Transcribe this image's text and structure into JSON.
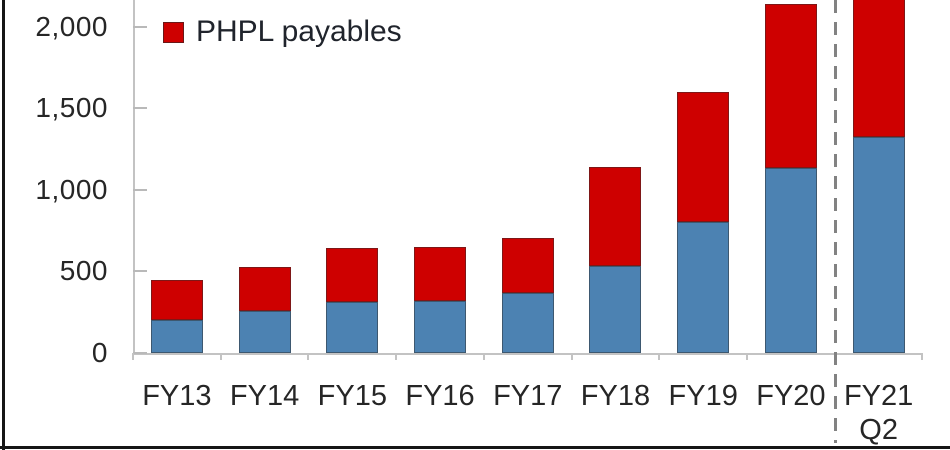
{
  "legend": {
    "items": [
      {
        "label": "PHPL payables",
        "color": "#CE0000",
        "shape": "square"
      }
    ],
    "note_visible_entries": 1
  },
  "y_axis": {
    "tick_labels": [
      "0",
      "500",
      "1,000",
      "1,500",
      "2,000"
    ],
    "tick_values": [
      0,
      500,
      1000,
      1500,
      2000
    ]
  },
  "x_axis": {
    "categories": [
      {
        "label": "FY13",
        "sublabel": ""
      },
      {
        "label": "FY14",
        "sublabel": ""
      },
      {
        "label": "FY15",
        "sublabel": ""
      },
      {
        "label": "FY16",
        "sublabel": ""
      },
      {
        "label": "FY17",
        "sublabel": ""
      },
      {
        "label": "FY18",
        "sublabel": ""
      },
      {
        "label": "FY19",
        "sublabel": ""
      },
      {
        "label": "FY20",
        "sublabel": ""
      },
      {
        "label": "FY21",
        "sublabel": "Q2"
      }
    ]
  },
  "chart_data": {
    "type": "bar",
    "stacked": true,
    "categories": [
      "FY13",
      "FY14",
      "FY15",
      "FY16",
      "FY17",
      "FY18",
      "FY19",
      "FY20",
      "FY21 Q2"
    ],
    "series": [
      {
        "name": "",
        "legend_visible": false,
        "color": "#4C82B2",
        "values": [
          200,
          260,
          315,
          320,
          370,
          535,
          805,
          1135,
          1325
        ]
      },
      {
        "name": "PHPL payables",
        "legend_visible": true,
        "color": "#CE0000",
        "values": [
          250,
          270,
          330,
          330,
          335,
          605,
          795,
          1005,
          1075
        ],
        "last_segment_truncated_at_top": true
      }
    ],
    "stacked_totals": [
      450,
      530,
      645,
      650,
      705,
      1140,
      1600,
      2140,
      2400
    ],
    "ylabel": "",
    "xlabel": "",
    "ylim": [
      0,
      2170
    ],
    "grid": false,
    "legend_position": "top-left",
    "separator": {
      "style": "dashed-vertical-line",
      "color": "#828282",
      "between": [
        "FY20",
        "FY21 Q2"
      ]
    }
  },
  "colors": {
    "blue_series": "#4C82B2",
    "red_series": "#CE0000",
    "axis": "#C3C3C3",
    "text": "#262626",
    "separator": "#828282",
    "crop_border": "#161616",
    "background": "#FFFFFF"
  }
}
